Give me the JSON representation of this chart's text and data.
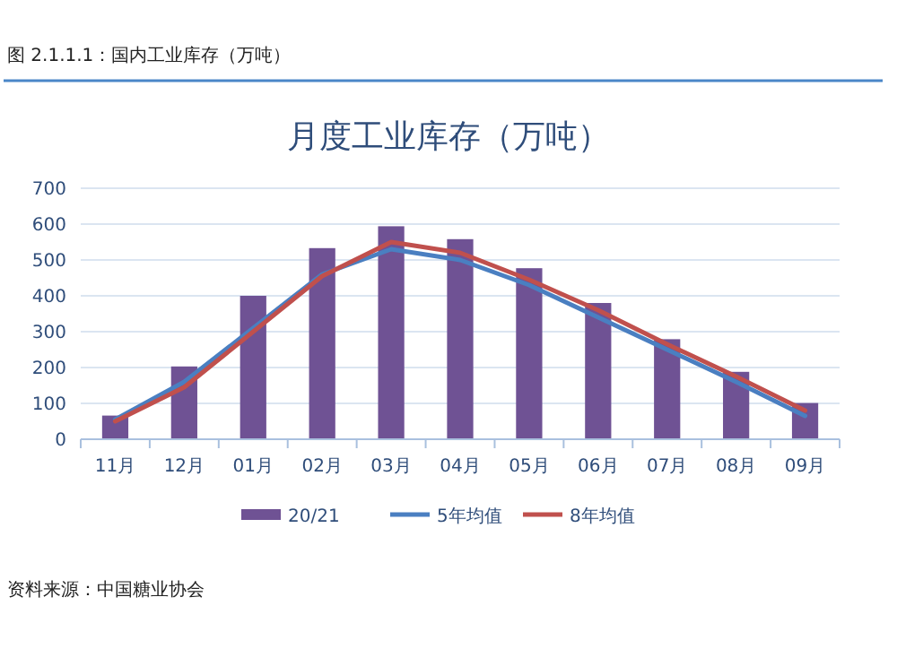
{
  "chart_data": {
    "type": "bar",
    "title": "月度工业库存（万吨）",
    "categories": [
      "11月",
      "12月",
      "01月",
      "02月",
      "03月",
      "04月",
      "05月",
      "06月",
      "07月",
      "08月",
      "09月"
    ],
    "series": [
      {
        "name": "20/21",
        "color": "#6f5294",
        "values": [
          66,
          203,
          400,
          533,
          594,
          558,
          477,
          380,
          279,
          188,
          101
        ]
      },
      {
        "name": "5年均值",
        "type": "line",
        "color": "#4a7fc1",
        "values": [
          55,
          160,
          310,
          460,
          530,
          500,
          430,
          340,
          250,
          160,
          65
        ]
      },
      {
        "name": "8年均值",
        "type": "line",
        "color": "#c0504d",
        "values": [
          50,
          145,
          300,
          455,
          550,
          520,
          445,
          360,
          265,
          175,
          80
        ]
      }
    ],
    "ylim": [
      0,
      700
    ],
    "yticks": [
      0,
      100,
      200,
      300,
      400,
      500,
      600,
      700
    ],
    "grid": "y",
    "legend": "bottom",
    "annotations": [
      "图 2.1.1.1：国内工业库存（万吨）",
      "资料来源：中国糖业协会"
    ]
  }
}
